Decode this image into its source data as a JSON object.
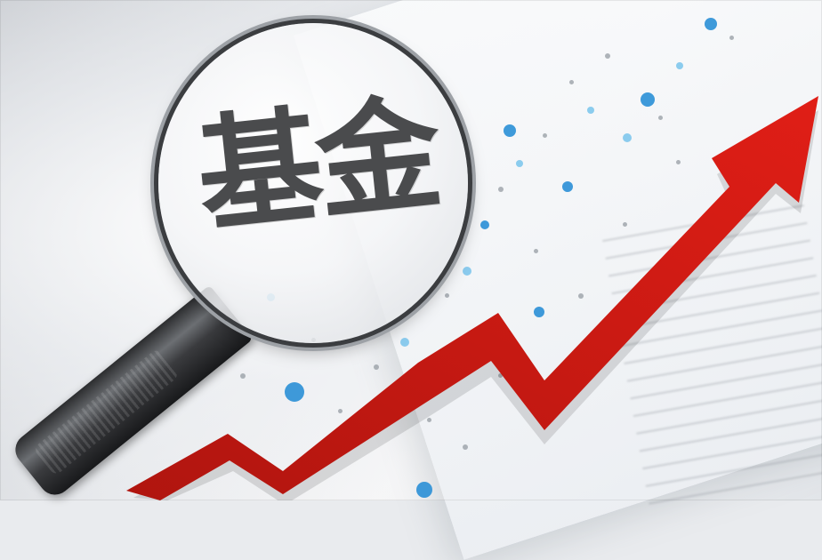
{
  "image": {
    "lens_text": "基金"
  },
  "colors": {
    "arrow": "#e01e16",
    "arrow_dark": "#b0150f",
    "dot_blue": "#2a8fd6",
    "dot_light": "#7fc6ec",
    "dot_gray": "#8f959c"
  }
}
